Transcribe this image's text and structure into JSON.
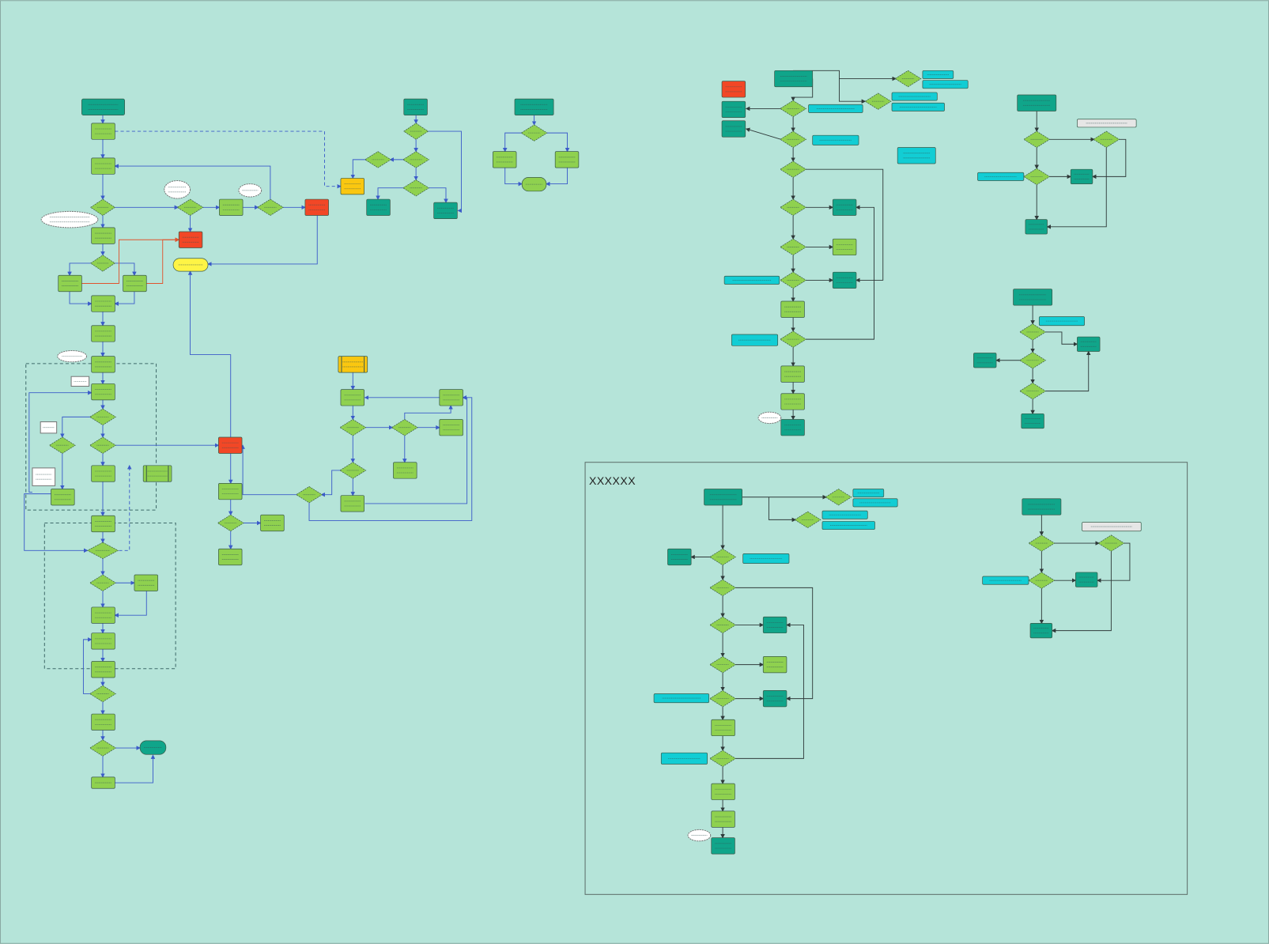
{
  "board": {
    "container_title": "XXXXXX"
  },
  "colors": {
    "background": "#b5e4d9",
    "process": "#8fd14f",
    "terminal_dark": "#10a58a",
    "note_cyan": "#12cdd4",
    "alert_red": "#f24726",
    "subprocess_orange": "#fac710",
    "terminal_yellow": "#fef445",
    "note_gray": "#e6e6e6",
    "connector_blue": "#3b5bc9",
    "connector_dark": "#2f3a3a",
    "connector_red": "#e0542e"
  }
}
